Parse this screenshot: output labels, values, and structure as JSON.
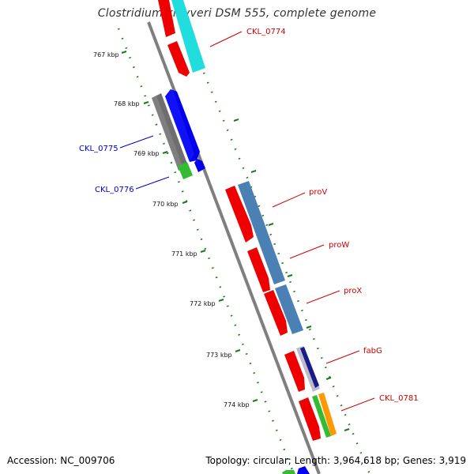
{
  "title": "Clostridium kluyveri DSM 555, complete genome",
  "accession_text": "Accession: NC_009706",
  "summary_text": "Topology: circular; Length: 3,964,618 bp; Genes: 3,919",
  "colors": {
    "backbone": "#808080",
    "tick": "#1a7a1a",
    "forward_label": "#cc0000",
    "reverse_label": "#0000cc"
  },
  "scale_ticks": [
    {
      "label": "767 kbp",
      "kbp": 767
    },
    {
      "label": "768 kbp",
      "kbp": 768
    },
    {
      "label": "769 kbp",
      "kbp": 769
    },
    {
      "label": "770 kbp",
      "kbp": 770
    },
    {
      "label": "771 kbp",
      "kbp": 771
    },
    {
      "label": "772 kbp",
      "kbp": 772
    },
    {
      "label": "773 kbp",
      "kbp": 773
    },
    {
      "label": "774 kbp",
      "kbp": 774
    }
  ],
  "gene_labels": [
    {
      "text": "CKL_0774",
      "strand": "forward"
    },
    {
      "text": "CKL_0775",
      "strand": "reverse"
    },
    {
      "text": "CKL_0776",
      "strand": "reverse"
    },
    {
      "text": "proV",
      "strand": "forward"
    },
    {
      "text": "proW",
      "strand": "forward"
    },
    {
      "text": "proX",
      "strand": "forward"
    },
    {
      "text": "fabG",
      "strand": "forward"
    },
    {
      "text": "CKL_0781",
      "strand": "forward"
    }
  ]
}
